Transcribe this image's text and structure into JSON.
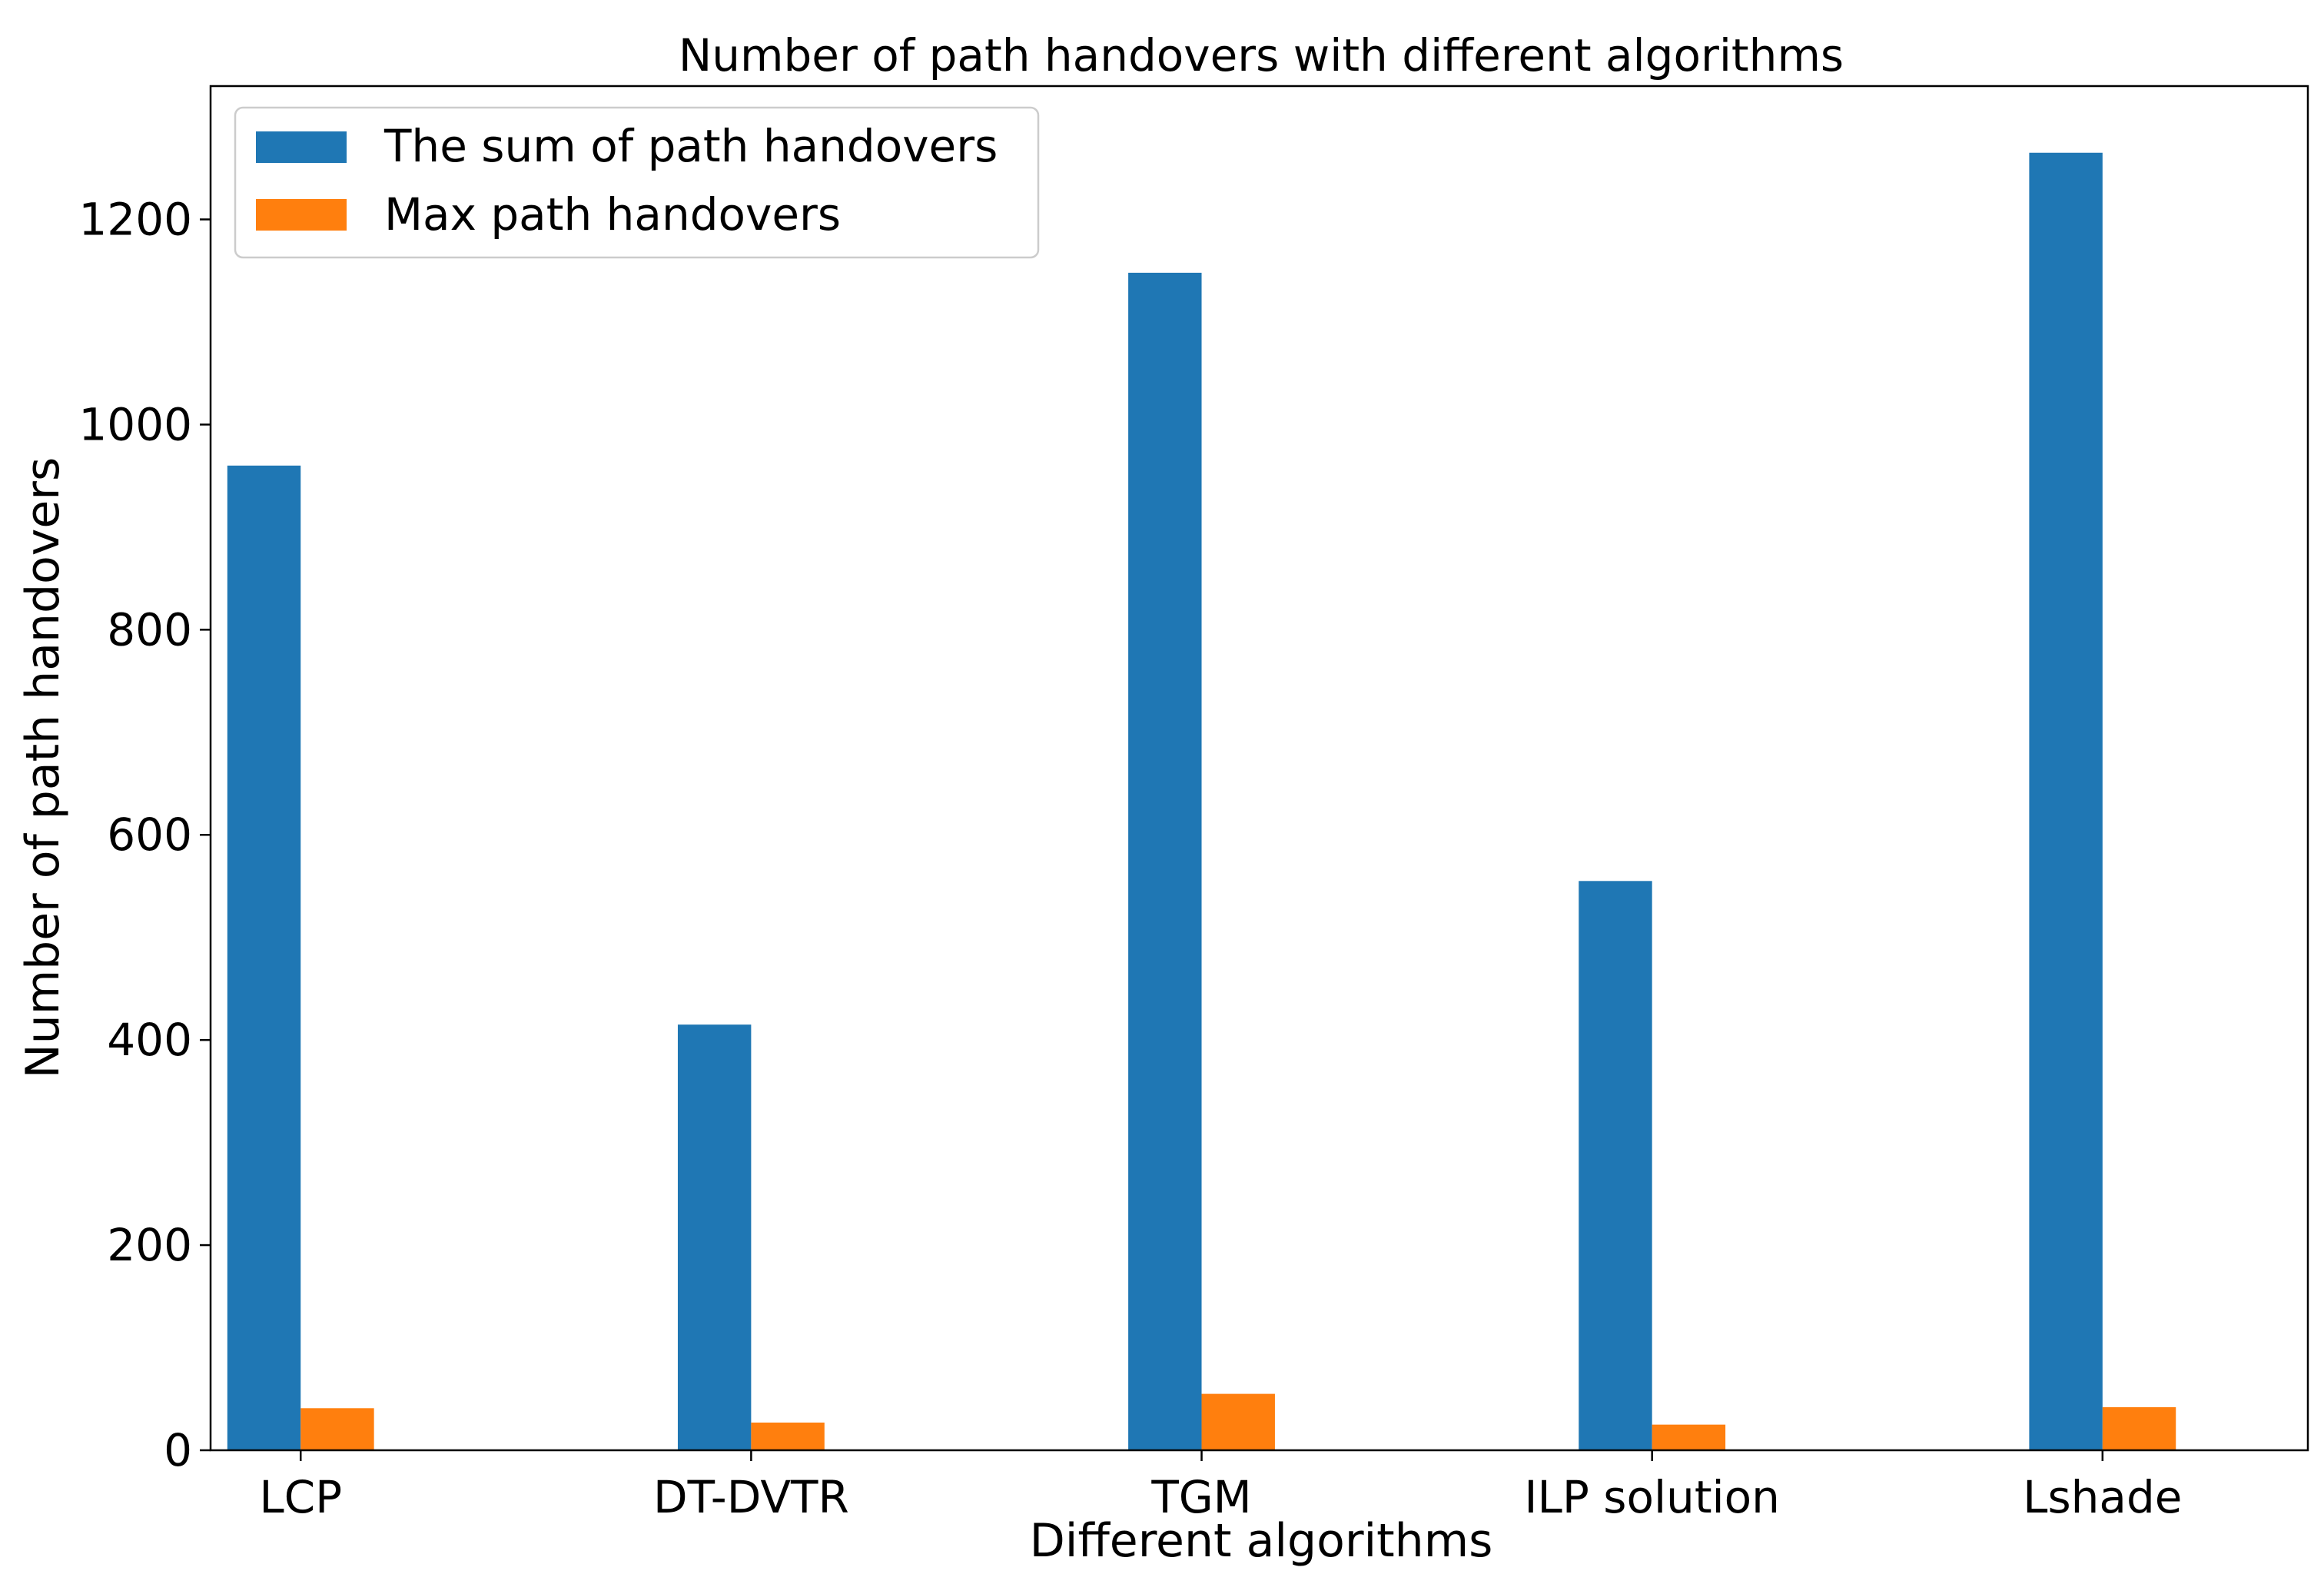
{
  "chart_data": {
    "type": "bar",
    "title": "Number of path handovers with different algorithms",
    "xlabel": "Different algorithms",
    "ylabel": "Number of path handovers",
    "categories": [
      "LCP",
      "DT-DVTR",
      "TGM",
      "ILP solution",
      "Lshade"
    ],
    "series": [
      {
        "name": "The sum of path handovers",
        "color": "#1f77b4",
        "values": [
          960,
          415,
          1148,
          555,
          1265
        ]
      },
      {
        "name": "Max path handovers",
        "color": "#ff7f0e",
        "values": [
          41,
          27,
          55,
          25,
          42
        ]
      }
    ],
    "yticks": [
      0,
      200,
      400,
      600,
      800,
      1000,
      1200
    ],
    "ylim": [
      0,
      1330
    ],
    "grid": false,
    "legend_position": "top-left"
  }
}
